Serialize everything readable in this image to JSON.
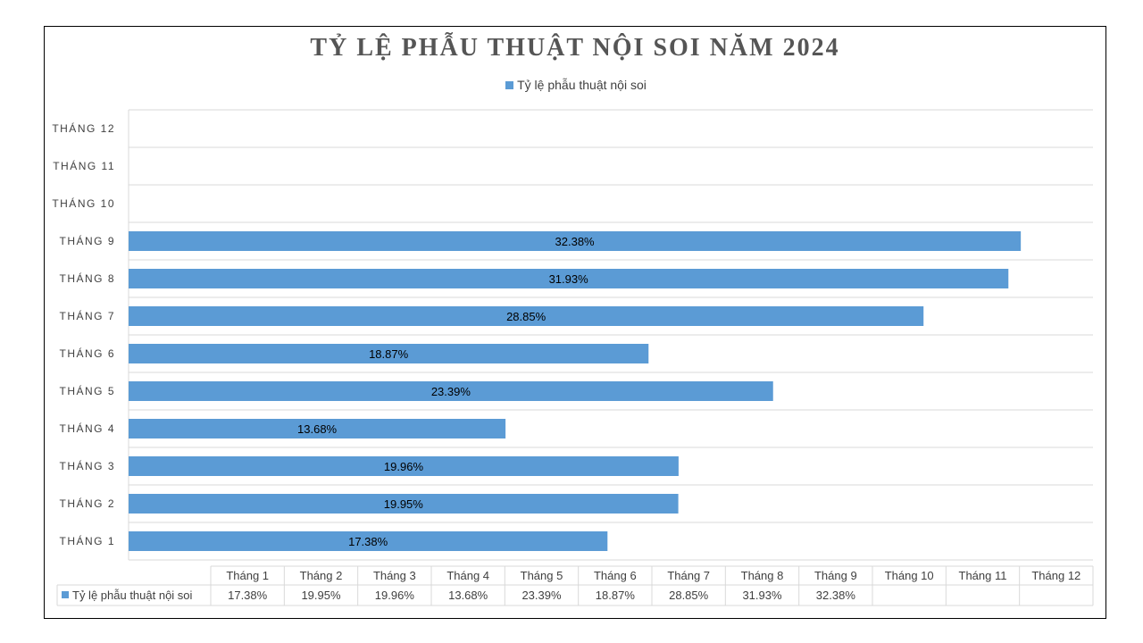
{
  "chart_data": {
    "type": "bar",
    "orientation": "horizontal",
    "title": "TỶ LỆ PHẪU THUẬT NỘI SOI NĂM 2024",
    "categories": [
      "THÁNG 1",
      "THÁNG 2",
      "THÁNG 3",
      "THÁNG 4",
      "THÁNG 5",
      "THÁNG 6",
      "THÁNG 7",
      "THÁNG 8",
      "THÁNG 9",
      "THÁNG 10",
      "THÁNG 11",
      "THÁNG 12"
    ],
    "series": [
      {
        "name": "Tỷ lệ phẫu thuật nội soi",
        "values": [
          17.38,
          19.95,
          19.96,
          13.68,
          23.39,
          18.87,
          28.85,
          31.93,
          32.38,
          null,
          null,
          null
        ],
        "data_labels": [
          "17.38%",
          "19.95%",
          "19.96%",
          "13.68%",
          "23.39%",
          "18.87%",
          "28.85%",
          "31.93%",
          "32.38%",
          "",
          "",
          ""
        ]
      }
    ],
    "xlim": [
      0,
      35
    ],
    "grid": true,
    "legend_position": "top",
    "colors": {
      "bar": "#5B9BD5",
      "grid": "#D9D9D9",
      "frame": "#000000"
    },
    "data_table": {
      "headers": [
        "Tháng 1",
        "Tháng 2",
        "Tháng 3",
        "Tháng 4",
        "Tháng 5",
        "Tháng 6",
        "Tháng 7",
        "Tháng 8",
        "Tháng 9",
        "Tháng 10",
        "Tháng 11",
        "Tháng 12"
      ],
      "row_label": "Tỷ lệ phẫu thuật nội soi",
      "row_values": [
        "17.38%",
        "19.95%",
        "19.96%",
        "13.68%",
        "23.39%",
        "18.87%",
        "28.85%",
        "31.93%",
        "32.38%",
        "",
        "",
        ""
      ]
    }
  }
}
